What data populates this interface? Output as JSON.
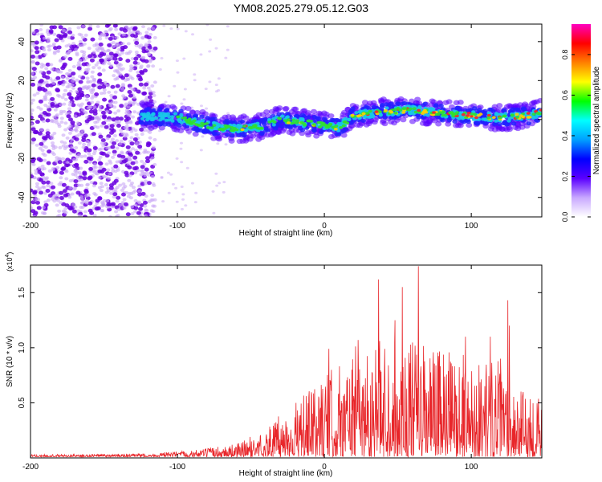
{
  "title": "YM08.2025.279.05.12.G03",
  "colors": {
    "snr_line": "#e8262a",
    "ridge_core": "#18c8e8",
    "scatter_dark": "#6a00e0",
    "scatter_light": "#c9a8f5"
  },
  "chart_data": [
    {
      "id": "spectrogram",
      "type": "heatmap",
      "xlabel": "Height of straight line (km)",
      "ylabel": "Frequency (Hz)",
      "xlim": [
        -200,
        148
      ],
      "ylim": [
        -50,
        49
      ],
      "xticks": [
        -200,
        -100,
        0,
        100
      ],
      "yticks": [
        -40,
        -20,
        0,
        20,
        40
      ],
      "xtick_labels": [
        "-200",
        "-100",
        "0",
        "100"
      ],
      "ytick_labels": [
        "-40",
        "-20",
        "0",
        "20",
        "40"
      ],
      "noise_region_km": [
        -200,
        -115
      ],
      "ridge_start_km": -125,
      "ridge_freq_hz": [
        {
          "x": -125,
          "y": 2
        },
        {
          "x": -100,
          "y": 1
        },
        {
          "x": -80,
          "y": -3
        },
        {
          "x": -60,
          "y": -5
        },
        {
          "x": -45,
          "y": -4
        },
        {
          "x": -30,
          "y": 0
        },
        {
          "x": -10,
          "y": -2
        },
        {
          "x": 10,
          "y": -4
        },
        {
          "x": 20,
          "y": 2
        },
        {
          "x": 40,
          "y": 4
        },
        {
          "x": 60,
          "y": 5
        },
        {
          "x": 80,
          "y": 3
        },
        {
          "x": 100,
          "y": 2
        },
        {
          "x": 120,
          "y": 1
        },
        {
          "x": 140,
          "y": 2
        },
        {
          "x": 148,
          "y": 4
        }
      ],
      "colorbar": {
        "label": "Normalized spectral amplitude",
        "range": [
          0.0,
          0.95
        ],
        "ticks": [
          0.0,
          0.2,
          0.4,
          0.6,
          0.8
        ],
        "tick_labels": [
          "0.0",
          "0.2",
          "0.4",
          "0.6",
          "0.8"
        ],
        "colors": [
          "#ffffff",
          "#c8a8ff",
          "#5a00ff",
          "#0000ff",
          "#00a0ff",
          "#00ffff",
          "#00ff00",
          "#ffff00",
          "#ff8000",
          "#ff0000",
          "#ff00c0"
        ]
      }
    },
    {
      "id": "snr",
      "type": "line",
      "xlabel": "Height of straight line (km)",
      "ylabel": "SNR (10 * v/v)",
      "ymultiplier": "(x10",
      "ymultiplier_exp": "4",
      "xlim": [
        -200,
        148
      ],
      "ylim": [
        0,
        1.75
      ],
      "xticks": [
        -200,
        -100,
        0,
        100
      ],
      "yticks": [
        0.5,
        1.0,
        1.5
      ],
      "xtick_labels": [
        "-200",
        "-100",
        "0",
        "100"
      ],
      "ytick_labels": [
        "0.5",
        "1.0",
        "1.5"
      ],
      "envelope": [
        {
          "x": -200,
          "y": 0.02
        },
        {
          "x": -120,
          "y": 0.03
        },
        {
          "x": -90,
          "y": 0.06
        },
        {
          "x": -60,
          "y": 0.12
        },
        {
          "x": -40,
          "y": 0.25
        },
        {
          "x": -25,
          "y": 0.45
        },
        {
          "x": -10,
          "y": 0.6
        },
        {
          "x": 5,
          "y": 0.8
        },
        {
          "x": 20,
          "y": 1.0
        },
        {
          "x": 40,
          "y": 1.1
        },
        {
          "x": 60,
          "y": 1.05
        },
        {
          "x": 80,
          "y": 1.0
        },
        {
          "x": 100,
          "y": 0.9
        },
        {
          "x": 120,
          "y": 0.9
        },
        {
          "x": 135,
          "y": 0.6
        },
        {
          "x": 148,
          "y": 0.6
        }
      ],
      "peaks": [
        {
          "x": 37,
          "y": 1.62
        },
        {
          "x": 53,
          "y": 1.55
        },
        {
          "x": 64,
          "y": 1.74
        },
        {
          "x": 125,
          "y": 1.43
        },
        {
          "x": 3,
          "y": 0.99
        },
        {
          "x": 23,
          "y": 1.07
        },
        {
          "x": 48,
          "y": 1.25
        },
        {
          "x": 96,
          "y": 1.1
        },
        {
          "x": 113,
          "y": 1.1
        },
        {
          "x": 126,
          "y": 1.2
        }
      ]
    }
  ]
}
